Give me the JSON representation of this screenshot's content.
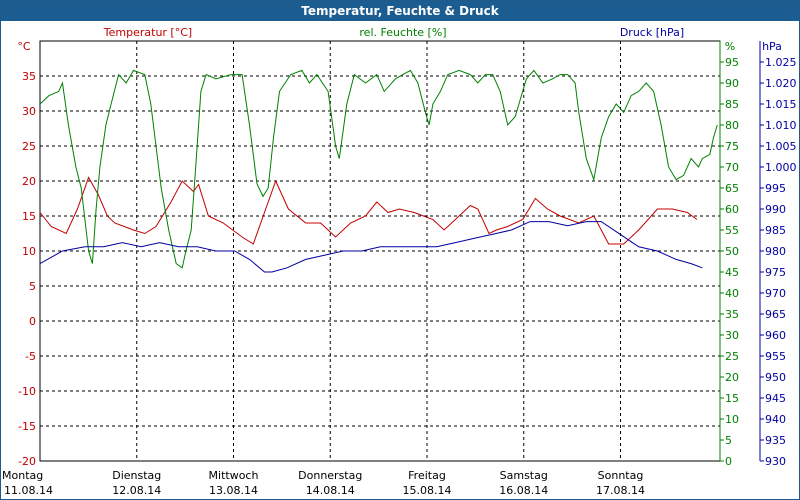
{
  "window": {
    "title": "Temperatur, Feuchte & Druck"
  },
  "colors": {
    "temperature": "#c00000",
    "humidity": "#008000",
    "pressure": "#0000a0",
    "grid": "#000000"
  },
  "chart_data": {
    "type": "line",
    "title": "Temperatur, Feuchte & Druck",
    "axes": {
      "temperature": {
        "label": "Temperatur [°C]",
        "unit": "°C",
        "min": -20,
        "max": 40,
        "ticks": [
          "35",
          "30",
          "25",
          "20",
          "15",
          "10",
          "5",
          "0",
          "-5",
          "-10",
          "-15",
          "-20"
        ],
        "position": "left"
      },
      "humidity": {
        "label": "rel. Feuchte [%]",
        "unit": "%",
        "min": 0,
        "max": 100,
        "ticks": [
          "95",
          "90",
          "85",
          "80",
          "75",
          "70",
          "65",
          "60",
          "55",
          "50",
          "45",
          "40",
          "35",
          "30",
          "25",
          "20",
          "15",
          "10",
          "5",
          "0"
        ],
        "position": "right"
      },
      "pressure": {
        "label": "Druck [hPa]",
        "unit": "hPa",
        "min": 930,
        "max": 1030,
        "ticks": [
          "1.025",
          "1.020",
          "1.015",
          "1.010",
          "1.005",
          "1.000",
          "995",
          "990",
          "985",
          "980",
          "975",
          "970",
          "965",
          "960",
          "955",
          "950",
          "945",
          "940",
          "935",
          "930"
        ],
        "position": "far-right"
      }
    },
    "x_days": [
      {
        "day": "Montag",
        "date": "11.08.14"
      },
      {
        "day": "Dienstag",
        "date": "12.08.14"
      },
      {
        "day": "Mittwoch",
        "date": "13.08.14"
      },
      {
        "day": "Donnerstag",
        "date": "14.08.14"
      },
      {
        "day": "Freitag",
        "date": "15.08.14"
      },
      {
        "day": "Samstag",
        "date": "16.08.14"
      },
      {
        "day": "Sonntag",
        "date": "17.08.14"
      }
    ],
    "x_range_days": [
      0,
      7
    ],
    "grid": true,
    "series": [
      {
        "name": "Temperatur [°C]",
        "axis": "temperature",
        "color": "#c00000",
        "points": [
          [
            0,
            15.5
          ],
          [
            0.15,
            13.5
          ],
          [
            0.35,
            12.5
          ],
          [
            0.5,
            16
          ],
          [
            0.65,
            20.5
          ],
          [
            0.78,
            18
          ],
          [
            0.9,
            15
          ],
          [
            1.0,
            14
          ],
          [
            1.25,
            13
          ],
          [
            1.4,
            12.5
          ],
          [
            1.55,
            13.5
          ],
          [
            1.75,
            17
          ],
          [
            1.9,
            20
          ],
          [
            2.05,
            18.5
          ],
          [
            2.12,
            19.5
          ],
          [
            2.25,
            15
          ],
          [
            2.45,
            14
          ],
          [
            2.7,
            12
          ],
          [
            2.85,
            11
          ],
          [
            3.05,
            17
          ],
          [
            3.15,
            20
          ],
          [
            3.32,
            16
          ],
          [
            3.55,
            14
          ],
          [
            3.75,
            14
          ],
          [
            3.95,
            12
          ],
          [
            4.15,
            14
          ],
          [
            4.35,
            15
          ],
          [
            4.5,
            17
          ],
          [
            4.65,
            15.5
          ],
          [
            4.8,
            16
          ],
          [
            5.0,
            15.5
          ],
          [
            5.25,
            14.5
          ],
          [
            5.4,
            13
          ],
          [
            5.6,
            15
          ],
          [
            5.75,
            16.5
          ],
          [
            5.85,
            16
          ],
          [
            6.0,
            12.5
          ],
          [
            6.1,
            13
          ],
          [
            6.25,
            13.5
          ],
          [
            6.45,
            14.5
          ],
          [
            6.62,
            17.5
          ],
          [
            6.78,
            16
          ],
          [
            6.95,
            15
          ],
          [
            7.2,
            14
          ],
          [
            7.4,
            15
          ],
          [
            7.6,
            11
          ],
          [
            7.8,
            11
          ],
          [
            8.0,
            13
          ],
          [
            8.25,
            16
          ],
          [
            8.45,
            16
          ],
          [
            8.65,
            15.5
          ],
          [
            8.78,
            14.5
          ]
        ]
      },
      {
        "name": "rel. Feuchte [%]",
        "axis": "humidity",
        "color": "#008000",
        "points": [
          [
            0,
            85
          ],
          [
            0.12,
            87
          ],
          [
            0.25,
            88
          ],
          [
            0.3,
            90
          ],
          [
            0.38,
            80
          ],
          [
            0.48,
            70
          ],
          [
            0.55,
            65
          ],
          [
            0.65,
            50
          ],
          [
            0.7,
            47
          ],
          [
            0.75,
            60
          ],
          [
            0.8,
            70
          ],
          [
            0.88,
            80
          ],
          [
            0.95,
            85
          ],
          [
            1.05,
            92
          ],
          [
            1.15,
            90
          ],
          [
            1.25,
            93
          ],
          [
            1.4,
            92
          ],
          [
            1.48,
            85
          ],
          [
            1.55,
            75
          ],
          [
            1.62,
            65
          ],
          [
            1.72,
            55
          ],
          [
            1.82,
            47
          ],
          [
            1.9,
            46
          ],
          [
            1.95,
            50
          ],
          [
            2.02,
            55
          ],
          [
            2.08,
            70
          ],
          [
            2.15,
            88
          ],
          [
            2.22,
            92
          ],
          [
            2.35,
            91
          ],
          [
            2.55,
            92
          ],
          [
            2.7,
            92
          ],
          [
            2.8,
            80
          ],
          [
            2.9,
            66
          ],
          [
            2.98,
            63
          ],
          [
            3.05,
            65
          ],
          [
            3.12,
            77
          ],
          [
            3.2,
            88
          ],
          [
            3.35,
            92
          ],
          [
            3.5,
            93
          ],
          [
            3.6,
            90
          ],
          [
            3.7,
            92
          ],
          [
            3.85,
            88
          ],
          [
            3.95,
            75
          ],
          [
            4.0,
            72
          ],
          [
            4.1,
            85
          ],
          [
            4.2,
            92
          ],
          [
            4.35,
            90
          ],
          [
            4.5,
            92
          ],
          [
            4.6,
            88
          ],
          [
            4.75,
            91
          ],
          [
            4.85,
            92
          ],
          [
            4.95,
            93
          ],
          [
            5.05,
            90
          ],
          [
            5.15,
            83
          ],
          [
            5.2,
            80
          ],
          [
            5.25,
            85
          ],
          [
            5.35,
            88
          ],
          [
            5.45,
            92
          ],
          [
            5.6,
            93
          ],
          [
            5.75,
            92
          ],
          [
            5.85,
            90
          ],
          [
            5.95,
            92
          ],
          [
            6.05,
            92
          ],
          [
            6.15,
            88
          ],
          [
            6.25,
            80
          ],
          [
            6.35,
            82
          ],
          [
            6.5,
            91
          ],
          [
            6.6,
            93
          ],
          [
            6.72,
            90
          ],
          [
            6.85,
            91
          ],
          [
            6.95,
            92
          ],
          [
            7.05,
            92
          ],
          [
            7.15,
            90
          ],
          [
            7.2,
            83
          ],
          [
            7.3,
            72
          ],
          [
            7.4,
            67
          ],
          [
            7.5,
            77
          ],
          [
            7.6,
            82
          ],
          [
            7.7,
            85
          ],
          [
            7.8,
            83
          ],
          [
            7.9,
            87
          ],
          [
            8.0,
            88
          ],
          [
            8.1,
            90
          ],
          [
            8.2,
            88
          ],
          [
            8.3,
            80
          ],
          [
            8.4,
            70
          ],
          [
            8.5,
            67
          ],
          [
            8.6,
            68
          ],
          [
            8.7,
            72
          ],
          [
            8.8,
            70
          ],
          [
            8.85,
            72
          ],
          [
            8.95,
            73
          ],
          [
            9.0,
            77
          ],
          [
            9.05,
            80
          ]
        ]
      },
      {
        "name": "Druck [hPa]",
        "axis": "pressure",
        "color": "#0000a0",
        "points": [
          [
            0,
            977
          ],
          [
            0.3,
            980
          ],
          [
            0.6,
            981
          ],
          [
            0.85,
            981
          ],
          [
            1.1,
            982
          ],
          [
            1.35,
            981
          ],
          [
            1.6,
            982
          ],
          [
            1.85,
            981
          ],
          [
            2.1,
            981
          ],
          [
            2.35,
            980
          ],
          [
            2.6,
            980
          ],
          [
            2.8,
            978
          ],
          [
            3.0,
            975
          ],
          [
            3.1,
            975
          ],
          [
            3.3,
            976
          ],
          [
            3.55,
            978
          ],
          [
            3.8,
            979
          ],
          [
            4.05,
            980
          ],
          [
            4.3,
            980
          ],
          [
            4.55,
            981
          ],
          [
            4.8,
            981
          ],
          [
            5.05,
            981
          ],
          [
            5.3,
            981
          ],
          [
            5.55,
            982
          ],
          [
            5.8,
            983
          ],
          [
            6.05,
            984
          ],
          [
            6.3,
            985
          ],
          [
            6.55,
            987
          ],
          [
            6.8,
            987
          ],
          [
            7.05,
            986
          ],
          [
            7.3,
            987
          ],
          [
            7.5,
            987
          ],
          [
            7.75,
            984
          ],
          [
            8.0,
            981
          ],
          [
            8.25,
            980
          ],
          [
            8.5,
            978
          ],
          [
            8.7,
            977
          ],
          [
            8.85,
            976
          ]
        ]
      }
    ]
  }
}
